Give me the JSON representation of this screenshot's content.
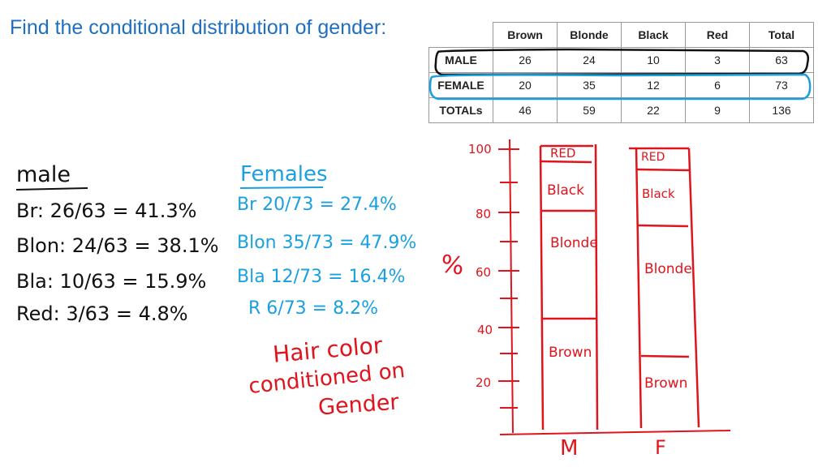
{
  "title": "Find the conditional distribution of gender:",
  "table": {
    "headers": [
      "Brown",
      "Blonde",
      "Black",
      "Red",
      "Total"
    ],
    "rows": [
      {
        "label": "MALE",
        "values": [
          "26",
          "24",
          "10",
          "3",
          "63"
        ]
      },
      {
        "label": "FEMALE",
        "values": [
          "20",
          "35",
          "12",
          "6",
          "73"
        ]
      },
      {
        "label": "TOTALs",
        "values": [
          "46",
          "59",
          "22",
          "9",
          "136"
        ]
      }
    ]
  },
  "male_notes": {
    "heading": "male",
    "lines": [
      "Br: 26/63 = 41.3%",
      "Blon: 24/63 = 38.1%",
      "Bla: 10/63 = 15.9%",
      "Red: 3/63 = 4.8%"
    ]
  },
  "female_notes": {
    "heading": "Females",
    "lines": [
      "Br  20/73 = 27.4%",
      "Blon  35/73 = 47.9%",
      "Bla  12/73 = 16.4%",
      "R  6/73 = 8.2%"
    ]
  },
  "caption": [
    "Hair color",
    "conditioned on",
    "Gender"
  ],
  "sketch": {
    "axis_label": "%",
    "y_ticks": [
      "100",
      "80",
      "60",
      "40",
      "20"
    ],
    "bars": [
      {
        "name": "M",
        "segments": [
          "Brown",
          "Blonde",
          "Black",
          "RED"
        ]
      },
      {
        "name": "F",
        "segments": [
          "Brown",
          "Blonde",
          "Black",
          "RED"
        ]
      }
    ]
  },
  "colors": {
    "title": "#1f6fbf",
    "pen_black": "#111111",
    "pen_blue": "#1aa0e0",
    "pen_red": "#e0141c"
  }
}
